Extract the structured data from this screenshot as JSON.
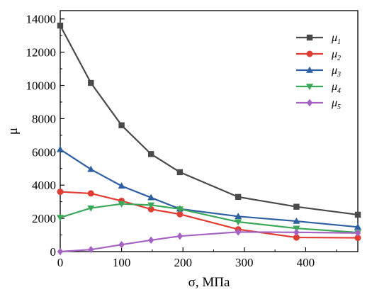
{
  "chart_data": {
    "type": "line",
    "xlabel": "σ, МПа",
    "ylabel": "μ",
    "xlim": [
      0,
      485
    ],
    "ylim": [
      0,
      14500
    ],
    "xticks": [
      0,
      100,
      200,
      300,
      400
    ],
    "yticks": [
      0,
      2000,
      4000,
      6000,
      8000,
      10000,
      12000,
      14000
    ],
    "grid": false,
    "legend_position": "top-right",
    "x": [
      0,
      50,
      100,
      148,
      195,
      290,
      385,
      485
    ],
    "series": [
      {
        "name": "μ",
        "sub": "1",
        "color": "#4a4a4a",
        "marker": "square",
        "values": [
          13600,
          10150,
          7600,
          5870,
          4780,
          3290,
          2700,
          2220
        ]
      },
      {
        "name": "μ",
        "sub": "2",
        "color": "#e03c31",
        "marker": "circle",
        "values": [
          3600,
          3500,
          3050,
          2550,
          2250,
          1340,
          850,
          830
        ]
      },
      {
        "name": "μ",
        "sub": "3",
        "color": "#2e5fa3",
        "marker": "triangle-up",
        "values": [
          6150,
          4950,
          3950,
          3250,
          2570,
          2120,
          1830,
          1480
        ]
      },
      {
        "name": "μ",
        "sub": "4",
        "color": "#3aa858",
        "marker": "triangle-down",
        "values": [
          2050,
          2620,
          2870,
          2800,
          2560,
          1790,
          1400,
          1150
        ]
      },
      {
        "name": "μ",
        "sub": "5",
        "color": "#a463c2",
        "marker": "diamond",
        "values": [
          0,
          120,
          420,
          690,
          930,
          1180,
          1160,
          1120
        ]
      }
    ]
  }
}
